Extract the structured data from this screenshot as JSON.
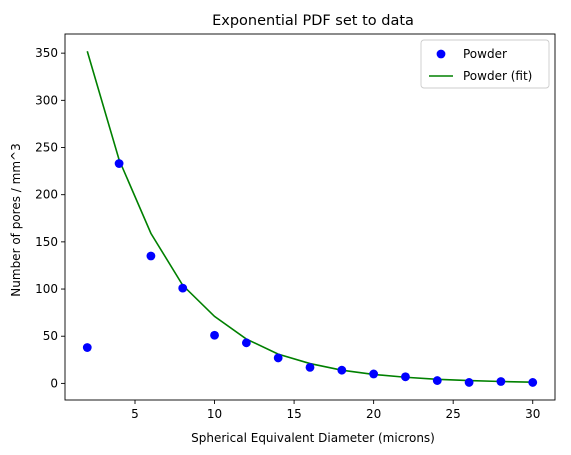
{
  "chart_data": {
    "type": "scatter",
    "title": "Exponential PDF set to data",
    "xlabel": "Spherical Equivalent Diameter (microns)",
    "ylabel": "Number of pores / mm^3",
    "xlim": [
      0.6,
      31.4
    ],
    "ylim": [
      -17.6,
      370.3
    ],
    "xticks": [
      5,
      10,
      15,
      20,
      25,
      30
    ],
    "yticks": [
      0,
      50,
      100,
      150,
      200,
      250,
      300,
      350
    ],
    "grid": false,
    "legend_position": "top-right",
    "series": [
      {
        "name": "Powder",
        "kind": "scatter",
        "color": "#0000ff",
        "x": [
          2,
          4,
          6,
          8,
          10,
          12,
          14,
          16,
          18,
          20,
          22,
          24,
          26,
          28,
          30
        ],
        "y": [
          38,
          233,
          135,
          101,
          51,
          43,
          27,
          17,
          14,
          10,
          7,
          3,
          1,
          2,
          1
        ]
      },
      {
        "name": "Powder (fit)",
        "kind": "line",
        "color": "#008000",
        "x": [
          2,
          4,
          6,
          8,
          10,
          12,
          14,
          16,
          18,
          20,
          22,
          24,
          26,
          28,
          30
        ],
        "y": [
          352,
          237,
          159,
          104,
          71,
          47,
          31,
          21,
          14,
          9.5,
          6.5,
          4.3,
          3.0,
          2.0,
          1.3
        ]
      }
    ]
  }
}
